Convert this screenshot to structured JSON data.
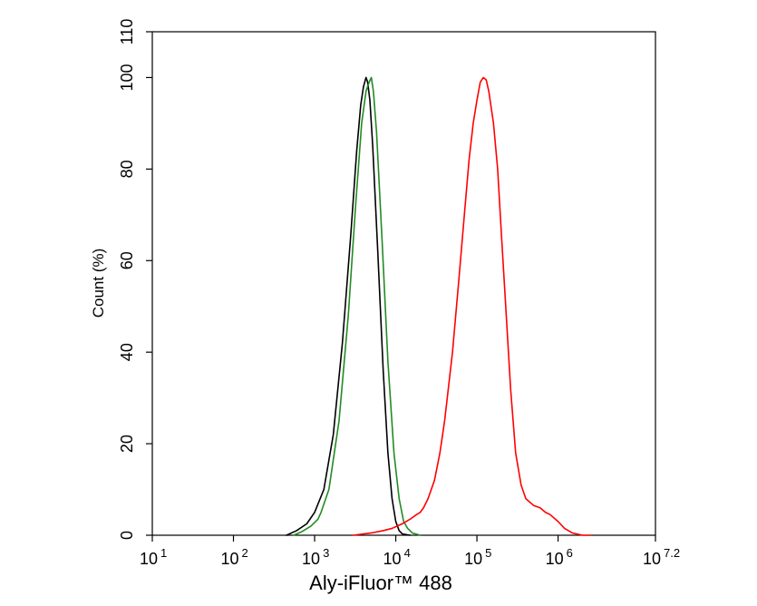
{
  "chart_data": {
    "type": "line",
    "title": "",
    "xlabel": "Aly-iFluor™ 488",
    "ylabel": "Count  (%)",
    "x_scale": "log10",
    "xlim": [
      10,
      15848931.92
    ],
    "ylim": [
      0,
      110
    ],
    "x_ticks": [
      {
        "base": "10",
        "exp": "1",
        "value": 10
      },
      {
        "base": "10",
        "exp": "2",
        "value": 100
      },
      {
        "base": "10",
        "exp": "3",
        "value": 1000
      },
      {
        "base": "10",
        "exp": "4",
        "value": 10000
      },
      {
        "base": "10",
        "exp": "5",
        "value": 100000
      },
      {
        "base": "10",
        "exp": "6",
        "value": 1000000
      },
      {
        "base": "10",
        "exp": "7.2",
        "value": 15848931.92
      }
    ],
    "y_ticks": [
      0,
      20,
      40,
      60,
      80,
      100,
      110
    ],
    "grid": false,
    "legend": "none",
    "series": [
      {
        "color": "#000000",
        "x": [
          450,
          600,
          800,
          1000,
          1300,
          1700,
          2200,
          2800,
          3300,
          3700,
          4000,
          4300,
          4500,
          4800,
          5200,
          6000,
          7000,
          8000,
          9000,
          10000,
          11000,
          12000,
          15000
        ],
        "y": [
          0,
          1,
          2.5,
          5,
          10,
          22,
          42,
          66,
          84,
          94,
          98,
          100,
          99,
          95,
          85,
          62,
          36,
          18,
          8,
          3,
          1,
          0.3,
          0
        ]
      },
      {
        "color": "#228B22",
        "x": [
          550,
          700,
          900,
          1100,
          1200,
          1500,
          2000,
          2600,
          3200,
          3800,
          4300,
          4700,
          5000,
          5300,
          5800,
          6800,
          8000,
          9500,
          11000,
          12500,
          14000,
          16000,
          20000
        ],
        "y": [
          0,
          0.8,
          2,
          3.5,
          5,
          10,
          25,
          48,
          72,
          90,
          97,
          99,
          100,
          97,
          88,
          64,
          38,
          18,
          8,
          3,
          1.5,
          0.5,
          0
        ]
      },
      {
        "color": "#FF0000",
        "x": [
          3000,
          5000,
          7000,
          9000,
          12000,
          15000,
          18000,
          20000,
          22000,
          25000,
          30000,
          35000,
          40000,
          50000,
          60000,
          70000,
          80000,
          90000,
          100000,
          110000,
          120000,
          130000,
          140000,
          160000,
          180000,
          200000,
          230000,
          260000,
          300000,
          350000,
          400000,
          500000,
          600000,
          700000,
          800000,
          1000000,
          1200000,
          1500000,
          2000000,
          2500000
        ],
        "y": [
          0,
          0.5,
          1,
          1.5,
          2.5,
          3.5,
          4.5,
          5,
          6,
          8,
          12,
          18,
          25,
          40,
          56,
          70,
          82,
          90,
          95,
          99,
          100,
          99.5,
          97,
          90,
          80,
          66,
          48,
          32,
          18,
          11,
          8,
          6.5,
          6,
          5,
          4.5,
          3,
          1.5,
          0.5,
          0,
          0
        ]
      }
    ]
  }
}
